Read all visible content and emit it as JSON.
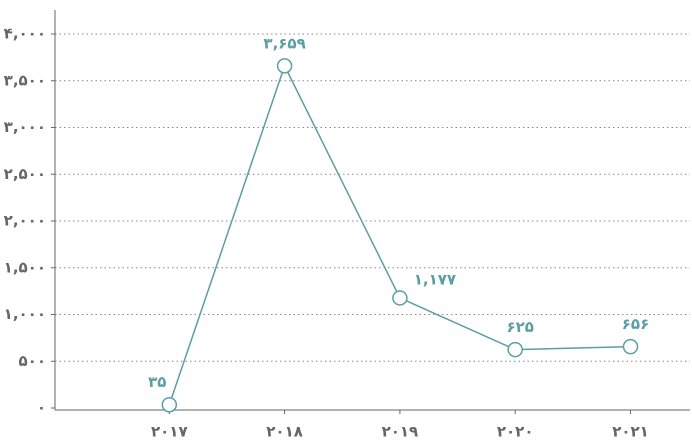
{
  "chart_data": {
    "type": "line",
    "categories": [
      "۲۰۱۷",
      "۲۰۱۸",
      "۲۰۱۹",
      "۲۰۲۰",
      "۲۰۲۱"
    ],
    "series": [
      {
        "color": "#5b9ea6",
        "values": [
          35,
          3659,
          1177,
          625,
          656
        ],
        "value_labels": [
          "۳۵",
          "۳,۶۵۹",
          "۱,۱۷۷",
          "۶۲۵",
          "۶۵۶"
        ]
      }
    ],
    "ylim": [
      0,
      4000
    ],
    "yticks": [
      {
        "value": 0,
        "label": "۰"
      },
      {
        "value": 500,
        "label": "۵۰۰"
      },
      {
        "value": 1000,
        "label": "۱,۰۰۰"
      },
      {
        "value": 1500,
        "label": "۱,۵۰۰"
      },
      {
        "value": 2000,
        "label": "۲,۰۰۰"
      },
      {
        "value": 2500,
        "label": "۲,۵۰۰"
      },
      {
        "value": 3000,
        "label": "۳,۰۰۰"
      },
      {
        "value": 3500,
        "label": "۳,۵۰۰"
      },
      {
        "value": 4000,
        "label": "۴,۰۰۰"
      }
    ],
    "grid": true
  }
}
